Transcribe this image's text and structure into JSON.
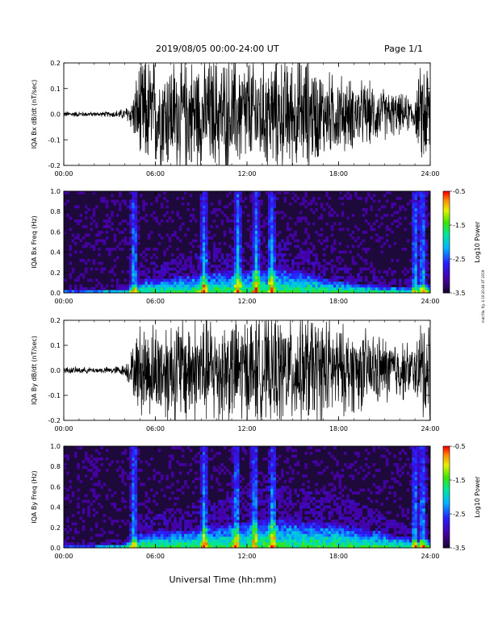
{
  "header": {
    "date_range": "2019/08/05   00:00-24:00 UT",
    "page": "Page 1/1"
  },
  "side_note": "mat file, fig. 4 10:20:48 UT 2019",
  "colors": {
    "trace": "#000000",
    "background": "#ffffff",
    "spectrogram_bg": "#1e0a3a"
  },
  "chart_data": [
    {
      "type": "line",
      "title": "",
      "ylabel": "IQA Bx dB/dt (nT/sec)",
      "xlabel": "",
      "xlim": [
        "00:00",
        "24:00"
      ],
      "ylim": [
        -0.2,
        0.2
      ],
      "x_ticks": [
        "00:00",
        "06:00",
        "12:00",
        "18:00",
        "24:00"
      ],
      "y_ticks": [
        "-0.2",
        "-0.1",
        "0.0",
        "0.1",
        "0.2"
      ],
      "series": [
        {
          "x_hours": [
            0,
            1,
            2,
            3,
            4,
            4.5,
            5,
            6,
            7,
            8,
            9,
            10,
            11,
            12,
            13,
            14,
            15,
            16,
            17,
            18,
            19,
            20,
            21,
            22,
            23,
            23.5,
            24
          ],
          "amplitude": [
            0.01,
            0.01,
            0.008,
            0.01,
            0.02,
            0.06,
            0.2,
            0.2,
            0.2,
            0.2,
            0.2,
            0.2,
            0.2,
            0.2,
            0.2,
            0.2,
            0.2,
            0.2,
            0.15,
            0.14,
            0.12,
            0.11,
            0.09,
            0.07,
            0.06,
            0.2,
            0.2
          ]
        }
      ]
    },
    {
      "type": "heatmap",
      "title": "",
      "ylabel": "IQA Bx Freq (Hz)",
      "xlabel": "",
      "xlim": [
        "00:00",
        "24:00"
      ],
      "ylim": [
        0.0,
        1.0
      ],
      "x_ticks": [
        "00:00",
        "06:00",
        "12:00",
        "18:00",
        "24:00"
      ],
      "y_ticks": [
        "0.0",
        "0.2",
        "0.4",
        "0.6",
        "0.8",
        "1.0"
      ],
      "colorbar": {
        "label": "Log10 Power",
        "range": [
          -3.5,
          -0.5
        ],
        "ticks": [
          "-0.5",
          "-1.5",
          "-2.5",
          "-3.5"
        ]
      },
      "activity_hours": [
        0,
        2,
        4,
        4.5,
        5,
        6,
        8,
        10,
        12,
        14,
        16,
        18,
        20,
        22,
        23,
        23.5,
        24
      ],
      "band_top_hz": [
        0.02,
        0.02,
        0.04,
        0.08,
        0.12,
        0.14,
        0.16,
        0.2,
        0.22,
        0.24,
        0.2,
        0.12,
        0.08,
        0.06,
        0.06,
        0.1,
        0.08
      ],
      "bursts_hours": [
        4.6,
        9.2,
        11.4,
        12.6,
        13.6,
        23.0,
        23.5
      ]
    },
    {
      "type": "line",
      "title": "",
      "ylabel": "IQA By dB/dt (nT/sec)",
      "xlabel": "",
      "xlim": [
        "00:00",
        "24:00"
      ],
      "ylim": [
        -0.2,
        0.2
      ],
      "x_ticks": [
        "00:00",
        "06:00",
        "12:00",
        "18:00",
        "24:00"
      ],
      "y_ticks": [
        "-0.2",
        "-0.1",
        "0.0",
        "0.1",
        "0.2"
      ],
      "series": [
        {
          "x_hours": [
            0,
            1,
            2,
            3,
            4,
            4.5,
            5,
            6,
            7,
            8,
            9,
            10,
            11,
            12,
            13,
            14,
            15,
            16,
            17,
            18,
            19,
            20,
            21,
            22,
            23,
            23.5,
            24
          ],
          "amplitude": [
            0.012,
            0.012,
            0.01,
            0.012,
            0.02,
            0.08,
            0.17,
            0.17,
            0.2,
            0.2,
            0.2,
            0.2,
            0.2,
            0.2,
            0.2,
            0.2,
            0.2,
            0.2,
            0.2,
            0.16,
            0.15,
            0.14,
            0.12,
            0.11,
            0.09,
            0.2,
            0.2
          ]
        }
      ]
    },
    {
      "type": "heatmap",
      "title": "",
      "ylabel": "IQA By Freq (Hz)",
      "xlabel": "Universal Time (hh:mm)",
      "xlim": [
        "00:00",
        "24:00"
      ],
      "ylim": [
        0.0,
        1.0
      ],
      "x_ticks": [
        "00:00",
        "06:00",
        "12:00",
        "18:00",
        "24:00"
      ],
      "y_ticks": [
        "0.0",
        "0.2",
        "0.4",
        "0.6",
        "0.8",
        "1.0"
      ],
      "colorbar": {
        "label": "Log10 Power",
        "range": [
          -3.5,
          -0.5
        ],
        "ticks": [
          "-0.5",
          "-1.5",
          "-2.5",
          "-3.5"
        ]
      },
      "activity_hours": [
        0,
        2,
        4,
        4.5,
        5,
        6,
        8,
        10,
        12,
        14,
        16,
        18,
        20,
        22,
        23,
        23.5,
        24
      ],
      "band_top_hz": [
        0.02,
        0.02,
        0.04,
        0.1,
        0.14,
        0.16,
        0.18,
        0.22,
        0.26,
        0.28,
        0.26,
        0.24,
        0.18,
        0.12,
        0.08,
        0.1,
        0.08
      ],
      "bursts_hours": [
        4.6,
        9.2,
        11.3,
        12.5,
        13.7,
        23.0,
        23.5
      ]
    }
  ]
}
